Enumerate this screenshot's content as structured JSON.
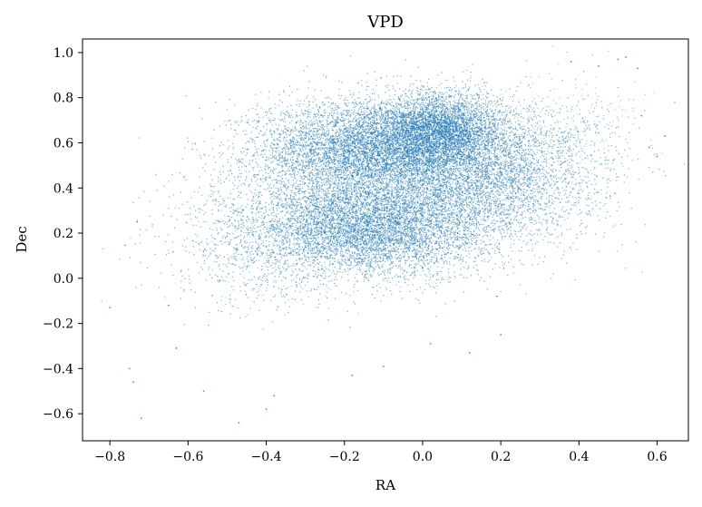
{
  "chart_data": {
    "type": "scatter",
    "title": "VPD",
    "xlabel": "RA",
    "ylabel": "Dec",
    "xlim": [
      -0.87,
      0.68
    ],
    "ylim": [
      -0.72,
      1.06
    ],
    "x_ticks": [
      "−0.8",
      "−0.6",
      "−0.4",
      "−0.2",
      "0.0",
      "0.2",
      "0.4",
      "0.6"
    ],
    "y_ticks": [
      "−0.6",
      "−0.4",
      "−0.2",
      "0.0",
      "0.2",
      "0.4",
      "0.6",
      "0.8",
      "1.0"
    ],
    "x_tick_values": [
      -0.8,
      -0.6,
      -0.4,
      -0.2,
      0.0,
      0.2,
      0.4,
      0.6
    ],
    "y_tick_values": [
      -0.6,
      -0.4,
      -0.2,
      0.0,
      0.2,
      0.4,
      0.6,
      0.8,
      1.0
    ],
    "grid": false,
    "point_color": "#1f77b4",
    "series": [
      {
        "values": [
          {
            "x": -0.8,
            "y": -0.13
          },
          {
            "x": -0.75,
            "y": -0.4
          },
          {
            "x": -0.74,
            "y": -0.46
          },
          {
            "x": -0.73,
            "y": 0.25
          },
          {
            "x": -0.72,
            "y": -0.62
          },
          {
            "x": -0.65,
            "y": -0.12
          },
          {
            "x": -0.63,
            "y": -0.31
          },
          {
            "x": -0.56,
            "y": -0.5
          },
          {
            "x": -0.47,
            "y": -0.64
          },
          {
            "x": -0.4,
            "y": -0.58
          },
          {
            "x": -0.38,
            "y": -0.52
          },
          {
            "x": -0.18,
            "y": -0.43
          },
          {
            "x": -0.1,
            "y": -0.39
          },
          {
            "x": 0.02,
            "y": -0.29
          },
          {
            "x": 0.12,
            "y": -0.33
          },
          {
            "x": 0.2,
            "y": -0.25
          },
          {
            "x": 0.19,
            "y": -0.08
          },
          {
            "x": 0.38,
            "y": 0.96
          },
          {
            "x": 0.45,
            "y": 0.94
          },
          {
            "x": 0.5,
            "y": 0.97
          },
          {
            "x": 0.52,
            "y": 0.98
          },
          {
            "x": 0.55,
            "y": 0.93
          },
          {
            "x": 0.56,
            "y": 0.72
          },
          {
            "x": 0.58,
            "y": 0.58
          },
          {
            "x": 0.62,
            "y": 0.63
          },
          {
            "x": 0.6,
            "y": 0.54
          }
        ]
      }
    ],
    "density_regions": [
      {
        "name": "upper-lobe",
        "cx": -0.12,
        "cy": 0.57,
        "sx": 0.15,
        "sy": 0.11,
        "count": 7000
      },
      {
        "name": "upper-right",
        "cx": 0.05,
        "cy": 0.66,
        "sx": 0.08,
        "sy": 0.08,
        "count": 3500
      },
      {
        "name": "lower-lobe",
        "cx": -0.13,
        "cy": 0.23,
        "sx": 0.16,
        "sy": 0.11,
        "count": 6200
      },
      {
        "name": "diagonal-tail",
        "cx": 0.16,
        "cy": 0.43,
        "sx": 0.12,
        "sy": 0.13,
        "count": 2200
      },
      {
        "name": "outer-right",
        "cx": 0.3,
        "cy": 0.48,
        "sx": 0.13,
        "sy": 0.16,
        "count": 800
      },
      {
        "name": "outer-left",
        "cx": -0.43,
        "cy": 0.18,
        "sx": 0.13,
        "sy": 0.16,
        "count": 700
      }
    ]
  }
}
